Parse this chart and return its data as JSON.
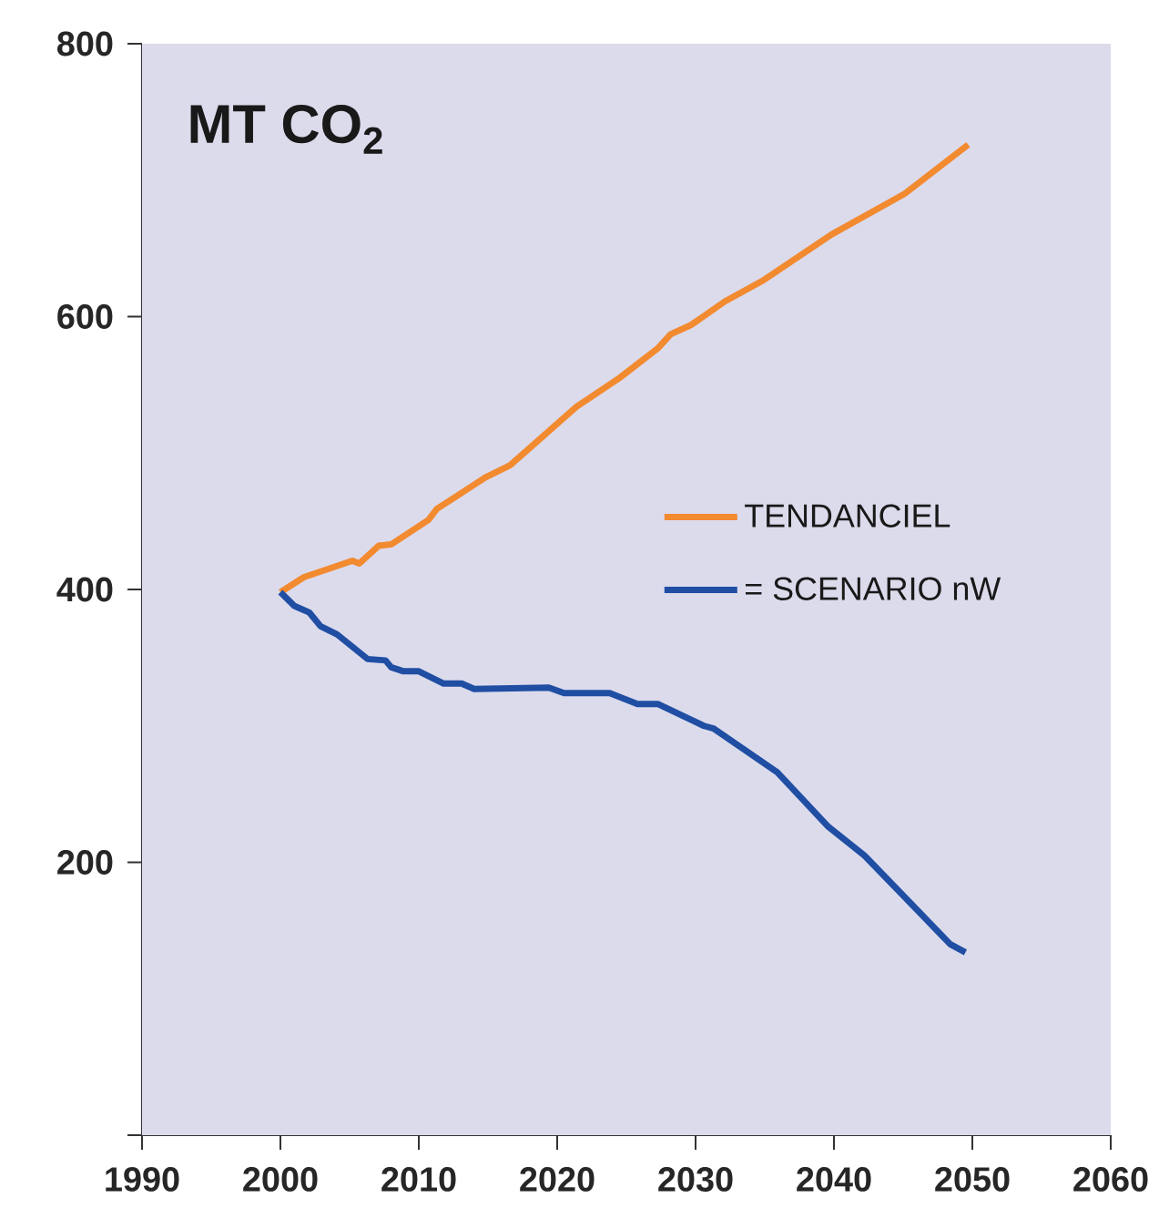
{
  "chart_data": {
    "type": "line",
    "title": "MT CO$_{2}$",
    "xlim": [
      1990,
      2060
    ],
    "xticks": [
      1990,
      2000,
      2010,
      2020,
      2030,
      2040,
      2050,
      2060
    ],
    "ylim": [
      0,
      800
    ],
    "yticks": [
      {
        "value": 0,
        "label": null
      },
      200,
      400,
      600,
      800
    ],
    "legend": "right",
    "grid": false,
    "marker": "none",
    "line_style": "solid",
    "series": [
      {
        "name": "TENDANCIEL",
        "color": "#f28a30",
        "x": [
          2000,
          2001.7,
          2005.2,
          2005.7,
          2007.1,
          2008.0,
          2010.7,
          2011.3,
          2014.8,
          2016.6,
          2021.4,
          2024.5,
          2027.3,
          2028.2,
          2029.7,
          2032.1,
          2034.8,
          2039.8,
          2045.1,
          2049.7
        ],
        "values": [
          398,
          409,
          421,
          419,
          432,
          433,
          451,
          459,
          482,
          491,
          534,
          555,
          577,
          587,
          594,
          611,
          626,
          660,
          690,
          726
        ]
      },
      {
        "name": "= SCENARIO nW",
        "color": "#1f4ea3",
        "x": [
          2000,
          2001.0,
          2002.1,
          2002.9,
          2004.1,
          2006.3,
          2007.6,
          2008.0,
          2008.9,
          2010.0,
          2011.8,
          2013.1,
          2014.0,
          2019.4,
          2020.5,
          2023.8,
          2025.8,
          2027.3,
          2030.6,
          2031.3,
          2035.9,
          2039.6,
          2042.2,
          2048.4,
          2049.5
        ],
        "values": [
          398,
          388,
          383,
          373,
          367,
          349,
          348,
          343,
          340,
          340,
          331,
          331,
          327,
          328,
          324,
          324,
          316,
          316,
          300,
          298,
          266,
          226,
          205,
          140,
          134
        ]
      }
    ]
  }
}
